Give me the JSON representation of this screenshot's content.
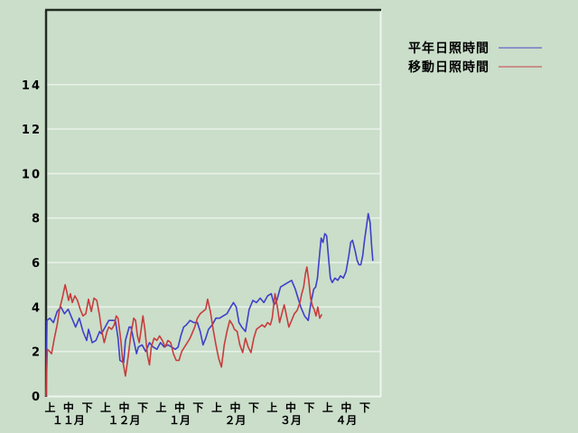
{
  "window": {
    "background_color": "#cadeca",
    "frame_dark_color": "#222c22",
    "frame_light_color": "#eef4ee",
    "grid_color": "#e8f1e8",
    "text_color": "#000000"
  },
  "legend": {
    "items": [
      {
        "label": "平年日照時間",
        "swatch_color": "#8a93c9"
      },
      {
        "label": "移動日照時間",
        "swatch_color": "#c98f8b"
      }
    ]
  },
  "chart_data": {
    "type": "line",
    "title": "",
    "xlabel": "",
    "ylabel": "",
    "ylim": [
      0,
      17.3
    ],
    "yticks": [
      0,
      2,
      4,
      6,
      8,
      10,
      12,
      14
    ],
    "x_total_days": 181,
    "grid": "horizontal-white",
    "legend_position": "outside-top-right",
    "xticks": [
      {
        "day": 2.2,
        "label": "上"
      },
      {
        "day": 12.2,
        "label": "中"
      },
      {
        "day": 22.3,
        "label": "下"
      },
      {
        "day": 32.3,
        "label": "上"
      },
      {
        "day": 42.3,
        "label": "中"
      },
      {
        "day": 52.4,
        "label": "下"
      },
      {
        "day": 62.4,
        "label": "上"
      },
      {
        "day": 72.4,
        "label": "中"
      },
      {
        "day": 82.4,
        "label": "下"
      },
      {
        "day": 92.5,
        "label": "上"
      },
      {
        "day": 102.5,
        "label": "中"
      },
      {
        "day": 112.5,
        "label": "下"
      },
      {
        "day": 122.5,
        "label": "上"
      },
      {
        "day": 132.6,
        "label": "中"
      },
      {
        "day": 142.6,
        "label": "下"
      },
      {
        "day": 152.6,
        "label": "上"
      },
      {
        "day": 162.6,
        "label": "中"
      },
      {
        "day": 172.7,
        "label": "下"
      }
    ],
    "month_labels": [
      {
        "day": 12.2,
        "label": "１１月"
      },
      {
        "day": 42.3,
        "label": "１２月"
      },
      {
        "day": 72.4,
        "label": "１月"
      },
      {
        "day": 102.5,
        "label": "２月"
      },
      {
        "day": 132.6,
        "label": "３月"
      },
      {
        "day": 162.6,
        "label": "４月"
      }
    ],
    "series": [
      {
        "name": "平年日照時間",
        "color": "#3f3fc9",
        "points": [
          [
            0,
            0
          ],
          [
            0.5,
            3.4
          ],
          [
            2,
            3.5
          ],
          [
            4,
            3.3
          ],
          [
            6,
            3.8
          ],
          [
            8,
            4.0
          ],
          [
            10,
            3.7
          ],
          [
            12,
            3.9
          ],
          [
            14,
            3.5
          ],
          [
            16,
            3.1
          ],
          [
            18,
            3.5
          ],
          [
            20,
            2.9
          ],
          [
            22,
            2.5
          ],
          [
            23,
            3.0
          ],
          [
            25,
            2.4
          ],
          [
            27,
            2.5
          ],
          [
            29,
            2.9
          ],
          [
            30,
            2.8
          ],
          [
            32,
            3.1
          ],
          [
            34,
            3.4
          ],
          [
            36,
            3.4
          ],
          [
            37.5,
            3.4
          ],
          [
            39,
            2.6
          ],
          [
            40,
            1.6
          ],
          [
            42,
            1.5
          ],
          [
            43,
            2.5
          ],
          [
            45,
            3.1
          ],
          [
            46,
            3.1
          ],
          [
            47.5,
            2.5
          ],
          [
            49,
            1.9
          ],
          [
            50,
            2.2
          ],
          [
            52,
            2.3
          ],
          [
            54,
            2.0
          ],
          [
            56,
            2.4
          ],
          [
            58,
            2.2
          ],
          [
            60,
            2.1
          ],
          [
            62,
            2.4
          ],
          [
            64,
            2.2
          ],
          [
            66,
            2.3
          ],
          [
            68,
            2.2
          ],
          [
            70,
            2.1
          ],
          [
            71.5,
            2.2
          ],
          [
            73,
            2.7
          ],
          [
            74.5,
            3.1
          ],
          [
            76,
            3.2
          ],
          [
            78,
            3.4
          ],
          [
            80,
            3.3
          ],
          [
            82,
            3.3
          ],
          [
            83.5,
            2.9
          ],
          [
            85,
            2.3
          ],
          [
            86.5,
            2.6
          ],
          [
            88,
            3.0
          ],
          [
            90,
            3.2
          ],
          [
            92,
            3.5
          ],
          [
            94,
            3.5
          ],
          [
            96,
            3.6
          ],
          [
            98,
            3.7
          ],
          [
            100,
            4.0
          ],
          [
            101.5,
            4.2
          ],
          [
            103,
            4.0
          ],
          [
            104.5,
            3.3
          ],
          [
            106,
            3.1
          ],
          [
            108,
            2.9
          ],
          [
            110,
            3.9
          ],
          [
            112,
            4.3
          ],
          [
            114,
            4.2
          ],
          [
            116,
            4.4
          ],
          [
            118,
            4.2
          ],
          [
            120,
            4.5
          ],
          [
            122,
            4.6
          ],
          [
            123.5,
            4.1
          ],
          [
            125,
            4.3
          ],
          [
            127,
            4.9
          ],
          [
            129,
            5.0
          ],
          [
            131,
            5.1
          ],
          [
            133,
            5.2
          ],
          [
            135,
            4.8
          ],
          [
            136.5,
            4.4
          ],
          [
            138,
            4.0
          ],
          [
            140,
            3.6
          ],
          [
            142,
            3.4
          ],
          [
            143.5,
            4.2
          ],
          [
            145,
            4.8
          ],
          [
            146,
            4.9
          ],
          [
            147,
            5.3
          ],
          [
            148,
            6.2
          ],
          [
            149,
            7.1
          ],
          [
            150,
            6.9
          ],
          [
            151,
            7.3
          ],
          [
            152,
            7.2
          ],
          [
            153,
            6.2
          ],
          [
            154,
            5.3
          ],
          [
            155,
            5.1
          ],
          [
            156.5,
            5.3
          ],
          [
            158,
            5.2
          ],
          [
            159.5,
            5.4
          ],
          [
            161,
            5.3
          ],
          [
            162.5,
            5.6
          ],
          [
            164,
            6.3
          ],
          [
            165,
            6.9
          ],
          [
            166,
            7.0
          ],
          [
            167.5,
            6.5
          ],
          [
            168.5,
            6.1
          ],
          [
            169.5,
            5.9
          ],
          [
            170.5,
            5.9
          ],
          [
            171.5,
            6.3
          ],
          [
            172.5,
            7.0
          ],
          [
            173.5,
            7.6
          ],
          [
            174.5,
            8.2
          ],
          [
            175.5,
            7.8
          ],
          [
            176.3,
            6.8
          ],
          [
            177,
            6.1
          ]
        ]
      },
      {
        "name": "移動日照時間",
        "color": "#c83c3c",
        "points": [
          [
            0,
            0
          ],
          [
            0.7,
            2.1
          ],
          [
            2,
            2.0
          ],
          [
            3,
            1.9
          ],
          [
            4.5,
            2.6
          ],
          [
            6,
            3.2
          ],
          [
            7.3,
            3.9
          ],
          [
            8.8,
            4.4
          ],
          [
            10.3,
            5.0
          ],
          [
            11.2,
            4.7
          ],
          [
            12.2,
            4.3
          ],
          [
            13.2,
            4.6
          ],
          [
            14.2,
            4.2
          ],
          [
            15.6,
            4.5
          ],
          [
            17,
            4.3
          ],
          [
            18.5,
            3.9
          ],
          [
            20,
            3.6
          ],
          [
            21.5,
            3.7
          ],
          [
            23,
            4.35
          ],
          [
            24.5,
            3.8
          ],
          [
            26,
            4.4
          ],
          [
            27.5,
            4.3
          ],
          [
            29,
            3.6
          ],
          [
            30,
            3.0
          ],
          [
            31.5,
            2.4
          ],
          [
            33,
            2.9
          ],
          [
            34,
            3.1
          ],
          [
            35.5,
            3.0
          ],
          [
            37,
            3.2
          ],
          [
            38,
            3.6
          ],
          [
            39,
            3.5
          ],
          [
            40.5,
            2.5
          ],
          [
            41.5,
            1.6
          ],
          [
            43,
            0.9
          ],
          [
            44.5,
            1.8
          ],
          [
            46,
            2.8
          ],
          [
            47.5,
            3.5
          ],
          [
            48.5,
            3.4
          ],
          [
            49.5,
            2.7
          ],
          [
            50.5,
            2.4
          ],
          [
            51.5,
            3.0
          ],
          [
            52.5,
            3.6
          ],
          [
            53.5,
            3.0
          ],
          [
            55,
            1.8
          ],
          [
            56,
            1.4
          ],
          [
            57,
            2.2
          ],
          [
            58.5,
            2.6
          ],
          [
            60,
            2.5
          ],
          [
            61.5,
            2.7
          ],
          [
            63,
            2.5
          ],
          [
            64.5,
            2.2
          ],
          [
            66,
            2.5
          ],
          [
            67.5,
            2.4
          ],
          [
            69,
            1.9
          ],
          [
            70.5,
            1.6
          ],
          [
            72,
            1.6
          ],
          [
            73.5,
            2.0
          ],
          [
            75,
            2.2
          ],
          [
            76.5,
            2.4
          ],
          [
            78,
            2.6
          ],
          [
            79,
            2.8
          ],
          [
            80.5,
            3.1
          ],
          [
            82,
            3.5
          ],
          [
            83.5,
            3.7
          ],
          [
            85,
            3.8
          ],
          [
            86.5,
            3.9
          ],
          [
            87.5,
            4.35
          ],
          [
            89,
            3.8
          ],
          [
            90.5,
            3.0
          ],
          [
            92,
            2.3
          ],
          [
            93.5,
            1.7
          ],
          [
            95,
            1.3
          ],
          [
            96.5,
            2.3
          ],
          [
            98,
            2.9
          ],
          [
            99.5,
            3.4
          ],
          [
            101,
            3.2
          ],
          [
            102,
            3.0
          ],
          [
            103.5,
            2.9
          ],
          [
            105,
            2.3
          ],
          [
            106.5,
            1.95
          ],
          [
            108,
            2.6
          ],
          [
            109.5,
            2.2
          ],
          [
            111,
            1.95
          ],
          [
            112.5,
            2.6
          ],
          [
            114,
            3.0
          ],
          [
            115.5,
            3.1
          ],
          [
            117,
            3.2
          ],
          [
            118.5,
            3.1
          ],
          [
            120,
            3.3
          ],
          [
            121.5,
            3.2
          ],
          [
            122.5,
            3.5
          ],
          [
            124,
            4.6
          ],
          [
            125.5,
            3.9
          ],
          [
            126.5,
            3.3
          ],
          [
            128,
            3.8
          ],
          [
            129,
            4.1
          ],
          [
            130.5,
            3.5
          ],
          [
            131.5,
            3.1
          ],
          [
            133,
            3.4
          ],
          [
            134.5,
            3.7
          ],
          [
            136,
            3.85
          ],
          [
            137.5,
            4.2
          ],
          [
            138.5,
            4.6
          ],
          [
            139.5,
            4.9
          ],
          [
            140.5,
            5.5
          ],
          [
            141.3,
            5.8
          ],
          [
            142.3,
            5.2
          ],
          [
            143.3,
            4.4
          ],
          [
            144.3,
            4.05
          ],
          [
            145.2,
            3.9
          ],
          [
            146.2,
            3.6
          ],
          [
            147.2,
            4.0
          ],
          [
            148.2,
            3.5
          ],
          [
            149.2,
            3.65
          ]
        ]
      }
    ]
  }
}
